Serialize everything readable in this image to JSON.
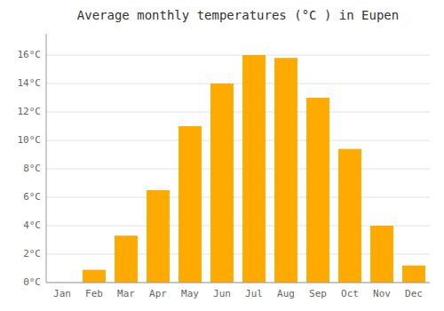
{
  "chart_data": {
    "type": "bar",
    "title": "Average monthly temperatures (°C ) in Eupen",
    "categories": [
      "Jan",
      "Feb",
      "Mar",
      "Apr",
      "May",
      "Jun",
      "Jul",
      "Aug",
      "Sep",
      "Oct",
      "Nov",
      "Dec"
    ],
    "values": [
      0.0,
      0.9,
      3.3,
      6.5,
      11.0,
      14.0,
      16.0,
      15.8,
      13.0,
      9.4,
      4.0,
      1.2
    ],
    "color": "#FFAA00",
    "ylim": [
      0,
      17.5
    ],
    "yticks": [
      {
        "value": 0,
        "label": "0°C"
      },
      {
        "value": 2,
        "label": "2°C"
      },
      {
        "value": 4,
        "label": "4°C"
      },
      {
        "value": 6,
        "label": "6°C"
      },
      {
        "value": 8,
        "label": "8°C"
      },
      {
        "value": 10,
        "label": "10°C"
      },
      {
        "value": 12,
        "label": "12°C"
      },
      {
        "value": 14,
        "label": "14°C"
      },
      {
        "value": 16,
        "label": "16°C"
      }
    ],
    "grid": true
  }
}
